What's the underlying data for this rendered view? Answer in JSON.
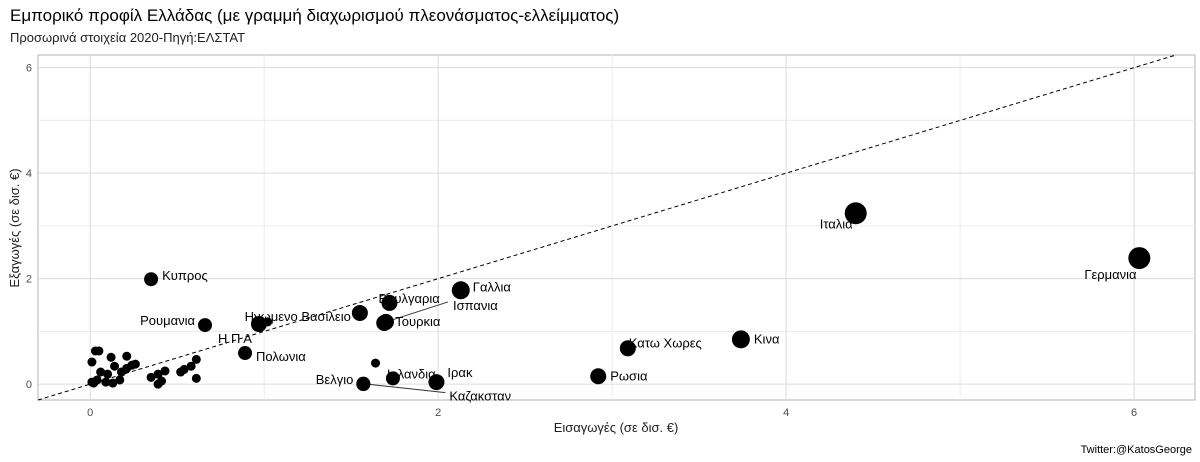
{
  "chart_data": {
    "type": "scatter",
    "title": "Εμπορικό προφίλ Ελλάδας (με γραμμή διαχωρισμού πλεονάσματος-ελλείμματος)",
    "subtitle": "Προσωρινά στοιχεία 2020-Πηγή:ΕΛΣΤΑΤ",
    "xlabel": "Εισαγωγές (σε δισ. €)",
    "ylabel": "Εξαγωγές (σε δισ. €)",
    "caption": "Twitter:@KatosGeorge",
    "xlim": [
      -0.3,
      6.35
    ],
    "ylim": [
      -0.3,
      6.24
    ],
    "xticks": [
      0,
      2,
      4,
      6
    ],
    "yticks": [
      0,
      2,
      4,
      6
    ],
    "grid": true,
    "reference_line": {
      "type": "y=x",
      "style": "dashed"
    },
    "labeled_points": [
      {
        "label": "Κυπρος",
        "x": 0.35,
        "y": 1.99,
        "size": 2
      },
      {
        "label": "Ρουμανια",
        "x": 0.66,
        "y": 1.12,
        "size": 2
      },
      {
        "label": "Η Π Α",
        "x": 0.97,
        "y": 1.14,
        "size": 2.5
      },
      {
        "label": "Πολωνια",
        "x": 0.89,
        "y": 0.59,
        "size": 2
      },
      {
        "label": "Ηνωμενο Βασιλειο",
        "x": 1.55,
        "y": 1.35,
        "size": 2.5
      },
      {
        "label": "Βουλγαρια",
        "x": 1.72,
        "y": 1.54,
        "size": 2.5
      },
      {
        "label": "Τουρκια",
        "x": 1.69,
        "y": 1.16,
        "size": 2.5
      },
      {
        "label": "Ισπανια",
        "x": 1.7,
        "y": 1.18,
        "size": 2.5
      },
      {
        "label": "Γαλλια",
        "x": 2.13,
        "y": 1.78,
        "size": 3
      },
      {
        "label": "Βελγιο",
        "x": 1.57,
        "y": 0.0,
        "size": 2
      },
      {
        "label": "Ιρλανδια",
        "x": 1.74,
        "y": 0.11,
        "size": 2
      },
      {
        "label": "Ιρακ",
        "x": 1.99,
        "y": 0.04,
        "size": 2.5
      },
      {
        "label": "Καζακσταν",
        "x": 1.57,
        "y": 0.01,
        "size": 2
      },
      {
        "label": "Ρωσια",
        "x": 2.92,
        "y": 0.15,
        "size": 2.5
      },
      {
        "label": "Κατω Χωρες",
        "x": 3.09,
        "y": 0.68,
        "size": 2.5
      },
      {
        "label": "Κινα",
        "x": 3.74,
        "y": 0.85,
        "size": 3
      },
      {
        "label": "Ιταλια",
        "x": 4.4,
        "y": 3.24,
        "size": 4
      },
      {
        "label": "Γερμανια",
        "x": 6.03,
        "y": 2.39,
        "size": 4
      }
    ],
    "unlabeled_points": [
      {
        "x": 1.02,
        "y": 1.18
      },
      {
        "x": 1.64,
        "y": 0.4
      },
      {
        "x": 0.05,
        "y": 0.63
      },
      {
        "x": 0.03,
        "y": 0.63
      },
      {
        "x": 0.01,
        "y": 0.42
      },
      {
        "x": 0.12,
        "y": 0.51
      },
      {
        "x": 0.21,
        "y": 0.53
      },
      {
        "x": 0.14,
        "y": 0.34
      },
      {
        "x": 0.06,
        "y": 0.23
      },
      {
        "x": 0.1,
        "y": 0.19
      },
      {
        "x": 0.04,
        "y": 0.08
      },
      {
        "x": 0.01,
        "y": 0.04
      },
      {
        "x": 0.02,
        "y": 0.02
      },
      {
        "x": 0.09,
        "y": 0.04
      },
      {
        "x": 0.13,
        "y": 0.02
      },
      {
        "x": 0.17,
        "y": 0.08
      },
      {
        "x": 0.18,
        "y": 0.23
      },
      {
        "x": 0.21,
        "y": 0.3
      },
      {
        "x": 0.24,
        "y": 0.36
      },
      {
        "x": 0.26,
        "y": 0.38
      },
      {
        "x": 0.35,
        "y": 0.13
      },
      {
        "x": 0.39,
        "y": 0.19
      },
      {
        "x": 0.43,
        "y": 0.25
      },
      {
        "x": 0.41,
        "y": 0.06
      },
      {
        "x": 0.39,
        "y": 0.0
      },
      {
        "x": 0.52,
        "y": 0.23
      },
      {
        "x": 0.54,
        "y": 0.28
      },
      {
        "x": 0.58,
        "y": 0.34
      },
      {
        "x": 0.61,
        "y": 0.47
      },
      {
        "x": 0.61,
        "y": 0.11
      }
    ]
  }
}
